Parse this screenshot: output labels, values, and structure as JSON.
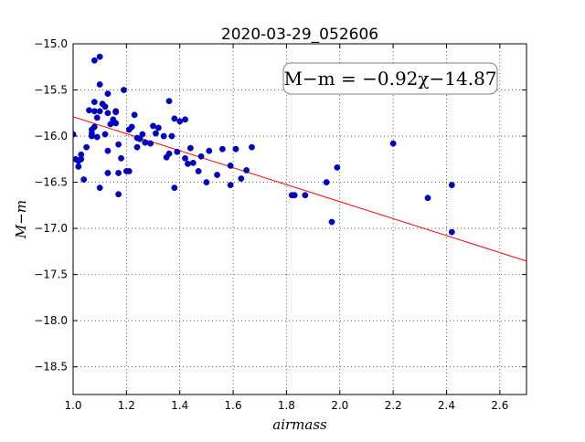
{
  "chart_data": {
    "type": "scatter",
    "title": "2020-03-29_052606",
    "xlabel": "airmass",
    "ylabel": "M−m",
    "xlim": [
      1.0,
      2.7
    ],
    "ylim": [
      -15.0,
      -18.8
    ],
    "x_ticks": [
      "1.0",
      "1.2",
      "1.4",
      "1.6",
      "1.8",
      "2.0",
      "2.2",
      "2.4",
      "2.6"
    ],
    "y_ticks": [
      "−15.0",
      "−15.5",
      "−16.0",
      "−16.5",
      "−17.0",
      "−17.5",
      "−18.0",
      "−18.5"
    ],
    "x_tick_values": [
      1.0,
      1.2,
      1.4,
      1.6,
      1.8,
      2.0,
      2.2,
      2.4,
      2.6
    ],
    "y_tick_values": [
      -15.0,
      -15.5,
      -16.0,
      -16.5,
      -17.0,
      -17.5,
      -18.0,
      -18.5
    ],
    "grid": true,
    "annotation": "M−m = −0.92χ−14.87",
    "fit": {
      "slope": -0.92,
      "intercept": -14.87,
      "color": "#ff0000"
    },
    "point_color": "#0000cc",
    "points": [
      [
        1.0,
        -15.98
      ],
      [
        1.01,
        -16.25
      ],
      [
        1.02,
        -16.33
      ],
      [
        1.02,
        -16.27
      ],
      [
        1.03,
        -16.25
      ],
      [
        1.03,
        -16.2
      ],
      [
        1.04,
        -16.47
      ],
      [
        1.05,
        -16.12
      ],
      [
        1.06,
        -15.72
      ],
      [
        1.07,
        -15.93
      ],
      [
        1.07,
        -15.97
      ],
      [
        1.07,
        -16.0
      ],
      [
        1.08,
        -15.18
      ],
      [
        1.08,
        -15.63
      ],
      [
        1.08,
        -15.73
      ],
      [
        1.08,
        -15.9
      ],
      [
        1.09,
        -16.01
      ],
      [
        1.09,
        -15.8
      ],
      [
        1.1,
        -15.14
      ],
      [
        1.1,
        -15.44
      ],
      [
        1.1,
        -15.73
      ],
      [
        1.1,
        -16.56
      ],
      [
        1.11,
        -15.65
      ],
      [
        1.12,
        -15.98
      ],
      [
        1.12,
        -15.68
      ],
      [
        1.13,
        -15.54
      ],
      [
        1.13,
        -15.75
      ],
      [
        1.13,
        -16.16
      ],
      [
        1.13,
        -16.4
      ],
      [
        1.14,
        -15.87
      ],
      [
        1.15,
        -15.82
      ],
      [
        1.16,
        -15.73
      ],
      [
        1.16,
        -15.74
      ],
      [
        1.16,
        -15.86
      ],
      [
        1.17,
        -16.09
      ],
      [
        1.17,
        -16.4
      ],
      [
        1.17,
        -16.63
      ],
      [
        1.18,
        -16.24
      ],
      [
        1.19,
        -15.5
      ],
      [
        1.2,
        -16.38
      ],
      [
        1.21,
        -16.38
      ],
      [
        1.21,
        -15.93
      ],
      [
        1.22,
        -15.9
      ],
      [
        1.23,
        -15.77
      ],
      [
        1.24,
        -16.12
      ],
      [
        1.24,
        -16.02
      ],
      [
        1.25,
        -16.03
      ],
      [
        1.26,
        -15.98
      ],
      [
        1.27,
        -16.07
      ],
      [
        1.29,
        -16.08
      ],
      [
        1.3,
        -15.89
      ],
      [
        1.31,
        -15.97
      ],
      [
        1.32,
        -15.91
      ],
      [
        1.34,
        -16.0
      ],
      [
        1.35,
        -16.23
      ],
      [
        1.36,
        -15.62
      ],
      [
        1.36,
        -16.19
      ],
      [
        1.37,
        -16.0
      ],
      [
        1.38,
        -16.56
      ],
      [
        1.38,
        -15.81
      ],
      [
        1.39,
        -16.17
      ],
      [
        1.4,
        -15.84
      ],
      [
        1.42,
        -15.82
      ],
      [
        1.42,
        -16.24
      ],
      [
        1.43,
        -16.3
      ],
      [
        1.44,
        -16.13
      ],
      [
        1.45,
        -16.29
      ],
      [
        1.47,
        -16.38
      ],
      [
        1.48,
        -16.22
      ],
      [
        1.5,
        -16.5
      ],
      [
        1.51,
        -16.16
      ],
      [
        1.54,
        -16.42
      ],
      [
        1.56,
        -16.14
      ],
      [
        1.59,
        -16.32
      ],
      [
        1.59,
        -16.53
      ],
      [
        1.61,
        -16.14
      ],
      [
        1.63,
        -16.46
      ],
      [
        1.65,
        -16.37
      ],
      [
        1.67,
        -16.12
      ],
      [
        1.82,
        -16.64
      ],
      [
        1.83,
        -16.64
      ],
      [
        1.87,
        -16.64
      ],
      [
        1.95,
        -16.5
      ],
      [
        1.97,
        -16.93
      ],
      [
        1.99,
        -16.34
      ],
      [
        2.2,
        -16.08
      ],
      [
        2.33,
        -16.67
      ],
      [
        2.42,
        -16.53
      ],
      [
        2.42,
        -17.04
      ]
    ]
  }
}
